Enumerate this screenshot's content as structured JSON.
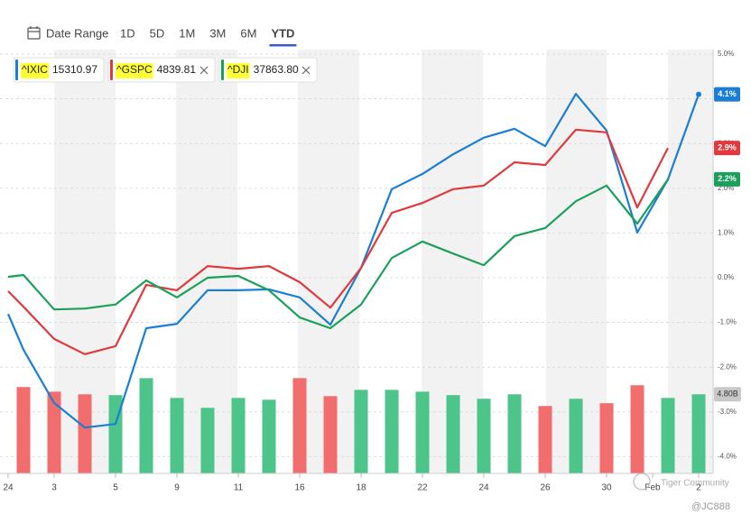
{
  "chart_data": {
    "type": "line",
    "toolbar": {
      "date_range": "Date Range",
      "ranges": [
        "1D",
        "5D",
        "1M",
        "3M",
        "6M",
        "YTD"
      ],
      "selected": 5
    },
    "x": [
      -0.5,
      0,
      1,
      2,
      3,
      4,
      5,
      6,
      7,
      8,
      9,
      10,
      11,
      12,
      13,
      14,
      15,
      16,
      17,
      18,
      19,
      20,
      21,
      22
    ],
    "xlim": [
      -0.765,
      22.47
    ],
    "xticks": [
      {
        "value": -0.5,
        "label": "24"
      },
      {
        "value": 1,
        "label": "3"
      },
      {
        "value": 3,
        "label": "5"
      },
      {
        "value": 5,
        "label": "9"
      },
      {
        "value": 7,
        "label": "11"
      },
      {
        "value": 9,
        "label": "16"
      },
      {
        "value": 11,
        "label": "18"
      },
      {
        "value": 13,
        "label": "22"
      },
      {
        "value": 15,
        "label": "24"
      },
      {
        "value": 17,
        "label": "26"
      },
      {
        "value": 19,
        "label": "30"
      },
      {
        "value": 20.5,
        "label": "Feb"
      },
      {
        "value": 22,
        "label": "2"
      }
    ],
    "ylim": [
      -4.375,
      5.1
    ],
    "yticks": [
      {
        "value": 5,
        "label": "5.0%"
      },
      {
        "value": 4,
        "label": "4.0%"
      },
      {
        "value": 3,
        "label": "3.0%"
      },
      {
        "value": 2,
        "label": "2.0%"
      },
      {
        "value": 1,
        "label": "1.0%"
      },
      {
        "value": 0,
        "label": "0.0%"
      },
      {
        "value": -1,
        "label": "-1.0%"
      },
      {
        "value": -2,
        "label": "-2.0%"
      },
      {
        "value": -3,
        "label": "-3.0%"
      },
      {
        "value": -4,
        "label": "-4.0%"
      }
    ],
    "grid": true,
    "series": [
      {
        "name": "^IXIC",
        "price": "15310.97",
        "color": "#1a7fd4",
        "last_label": "4.1%",
        "values": [
          -0.81,
          -1.61,
          -2.8,
          -3.35,
          -3.27,
          -1.13,
          -1.03,
          -0.28,
          -0.28,
          -0.26,
          -0.44,
          -1.05,
          0.22,
          1.98,
          2.32,
          2.76,
          3.13,
          3.33,
          2.94,
          4.11,
          3.29,
          1.01,
          2.2,
          4.1
        ]
      },
      {
        "name": "^GSPC",
        "price": "4839.81",
        "color": "#e0393e",
        "last_label": "2.9%",
        "values": [
          -0.3,
          -0.65,
          -1.37,
          -1.71,
          -1.53,
          -0.16,
          -0.28,
          0.26,
          0.2,
          0.26,
          -0.1,
          -0.67,
          0.22,
          1.45,
          1.67,
          1.98,
          2.06,
          2.58,
          2.52,
          3.31,
          3.25,
          1.57,
          2.9,
          null
        ]
      },
      {
        "name": "^DJI",
        "price": "37863.80",
        "color": "#1aa05a",
        "last_label": "2.2%",
        "values": [
          0.02,
          0.06,
          -0.71,
          -0.69,
          -0.6,
          -0.06,
          -0.44,
          0.0,
          0.04,
          -0.28,
          -0.89,
          -1.13,
          -0.6,
          0.44,
          0.81,
          0.54,
          0.28,
          0.93,
          1.11,
          1.71,
          2.06,
          1.21,
          2.2,
          null
        ]
      }
    ],
    "volume": {
      "x": [
        0,
        1,
        2,
        3,
        4,
        5,
        6,
        7,
        8,
        9,
        10,
        11,
        12,
        13,
        14,
        15,
        16,
        17,
        18,
        19,
        20,
        21,
        22
      ],
      "values": [
        5.24,
        4.96,
        4.8,
        4.75,
        5.78,
        4.58,
        3.98,
        4.58,
        4.47,
        5.78,
        4.69,
        5.07,
        5.07,
        4.96,
        4.75,
        4.53,
        4.8,
        4.09,
        4.53,
        4.26,
        5.35,
        4.58,
        4.8
      ],
      "colors": [
        "#f26d6d",
        "#f26d6d",
        "#f26d6d",
        "#4cc48a",
        "#4cc48a",
        "#4cc48a",
        "#4cc48a",
        "#4cc48a",
        "#4cc48a",
        "#f26d6d",
        "#f26d6d",
        "#4cc48a",
        "#4cc48a",
        "#4cc48a",
        "#4cc48a",
        "#4cc48a",
        "#4cc48a",
        "#f26d6d",
        "#4cc48a",
        "#f26d6d",
        "#f26d6d",
        "#4cc48a",
        "#4cc48a"
      ],
      "ylim": [
        0,
        5.8
      ],
      "current_label": "4.80B"
    },
    "watermark": "Tiger Community",
    "handle": "@JC888"
  }
}
